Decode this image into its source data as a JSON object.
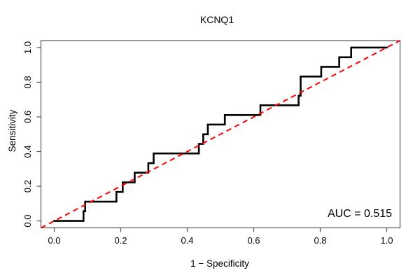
{
  "chart_data": {
    "type": "line",
    "title": "KCNQ1",
    "xlabel": "1 − Specificity",
    "ylabel": "Sensitivity",
    "annotation": "AUC = 0.515",
    "auc_value": 0.515,
    "xlim": [
      0,
      1
    ],
    "ylim": [
      0,
      1
    ],
    "x_ticks": [
      "0.0",
      "0.2",
      "0.4",
      "0.6",
      "0.8",
      "1.0"
    ],
    "y_ticks": [
      "0.0",
      "0.2",
      "0.4",
      "0.6",
      "0.8",
      "1.0"
    ],
    "grid": "off",
    "legend": "none",
    "colors": {
      "roc_curve": "#000000",
      "reference_line": "#ff0000",
      "box": "#555555",
      "tick": "#555555",
      "text": "#000000",
      "background": "#ffffff"
    },
    "series": [
      {
        "name": "ROC curve",
        "style": "solid",
        "line_width": 2.6,
        "points": [
          [
            0.0,
            0.0
          ],
          [
            0.088,
            0.0
          ],
          [
            0.088,
            0.056
          ],
          [
            0.093,
            0.056
          ],
          [
            0.093,
            0.111
          ],
          [
            0.187,
            0.111
          ],
          [
            0.187,
            0.167
          ],
          [
            0.206,
            0.167
          ],
          [
            0.206,
            0.222
          ],
          [
            0.242,
            0.222
          ],
          [
            0.242,
            0.278
          ],
          [
            0.283,
            0.278
          ],
          [
            0.283,
            0.333
          ],
          [
            0.299,
            0.333
          ],
          [
            0.299,
            0.389
          ],
          [
            0.435,
            0.389
          ],
          [
            0.435,
            0.444
          ],
          [
            0.448,
            0.444
          ],
          [
            0.448,
            0.5
          ],
          [
            0.462,
            0.5
          ],
          [
            0.462,
            0.556
          ],
          [
            0.513,
            0.556
          ],
          [
            0.513,
            0.611
          ],
          [
            0.62,
            0.611
          ],
          [
            0.62,
            0.667
          ],
          [
            0.735,
            0.667
          ],
          [
            0.735,
            0.722
          ],
          [
            0.741,
            0.722
          ],
          [
            0.741,
            0.833
          ],
          [
            0.803,
            0.833
          ],
          [
            0.803,
            0.889
          ],
          [
            0.857,
            0.889
          ],
          [
            0.857,
            0.944
          ],
          [
            0.893,
            0.944
          ],
          [
            0.893,
            1.0
          ],
          [
            1.0,
            1.0
          ]
        ]
      },
      {
        "name": "chance diagonal",
        "style": "dashed",
        "line_width": 2,
        "points": [
          [
            -0.04,
            -0.04
          ],
          [
            1.04,
            1.04
          ]
        ]
      }
    ]
  }
}
